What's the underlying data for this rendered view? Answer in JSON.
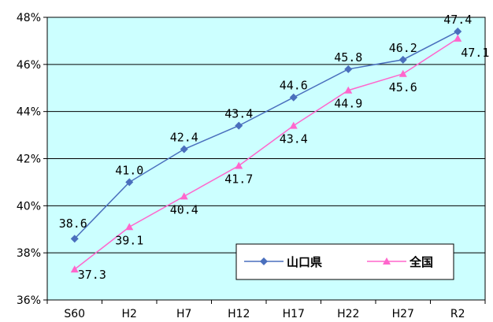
{
  "chart_data": {
    "type": "line",
    "categories": [
      "S60",
      "H2",
      "H7",
      "H12",
      "H17",
      "H22",
      "H27",
      "R2"
    ],
    "series": [
      {
        "name": "山口県",
        "values": [
          38.6,
          41.0,
          42.4,
          43.4,
          44.6,
          45.8,
          46.2,
          47.4
        ],
        "labels": [
          "38.6",
          "41.0",
          "42.4",
          "43.4",
          "44.6",
          "45.8",
          "46.2",
          "47.4"
        ],
        "color": "#4a6fbd",
        "marker": "diamond"
      },
      {
        "name": "全国",
        "values": [
          37.3,
          39.1,
          40.4,
          41.7,
          43.4,
          44.9,
          45.6,
          47.1
        ],
        "labels": [
          "37.3",
          "39.1",
          "40.4",
          "41.7",
          "43.4",
          "44.9",
          "45.6",
          "47.1"
        ],
        "color": "#ff66cc",
        "marker": "triangle"
      }
    ],
    "ylim": [
      36,
      48
    ],
    "yticks": [
      "36%",
      "38%",
      "40%",
      "42%",
      "44%",
      "46%",
      "48%"
    ],
    "ytick_values": [
      36,
      38,
      40,
      42,
      44,
      46,
      48
    ],
    "grid": true,
    "legend": "bottom-right",
    "plot_background": "#ccffff"
  }
}
